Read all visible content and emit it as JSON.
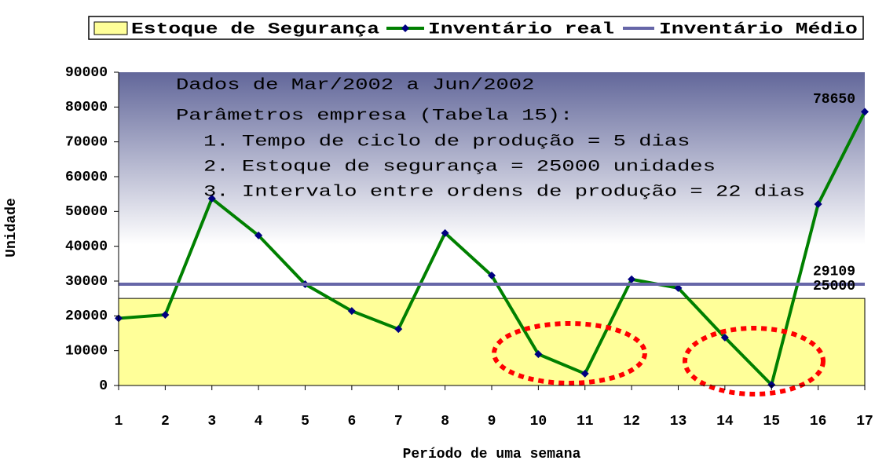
{
  "chart_data": {
    "type": "line",
    "annotations": [
      "Dados de Mar/2002 a Jun/2002",
      "Parâmetros empresa (Tabela 15):",
      "1. Tempo de ciclo de produção = 5 dias",
      "2. Estoque de segurança = 25000 unidades",
      "3. Intervalo entre ordens de produção = 22 dias"
    ],
    "xlabel": "Período de uma semana",
    "ylabel": "Unidade",
    "x": [
      1,
      2,
      3,
      4,
      5,
      6,
      7,
      8,
      9,
      10,
      11,
      12,
      13,
      14,
      15,
      16,
      17
    ],
    "xlim": [
      1,
      17
    ],
    "xticks": [
      1,
      2,
      3,
      4,
      5,
      6,
      7,
      8,
      9,
      10,
      11,
      12,
      13,
      14,
      15,
      16,
      17
    ],
    "ylim": [
      0,
      90000
    ],
    "yticks": [
      0,
      10000,
      20000,
      30000,
      40000,
      50000,
      60000,
      70000,
      80000,
      90000
    ],
    "legend": "top",
    "series": [
      {
        "name": "Estoque de Segurança",
        "kind": "area",
        "color": "#ffff99",
        "values": [
          25000,
          25000,
          25000,
          25000,
          25000,
          25000,
          25000,
          25000,
          25000,
          25000,
          25000,
          25000,
          25000,
          25000,
          25000,
          25000,
          25000
        ]
      },
      {
        "name": "Inventário real",
        "kind": "line",
        "color": "#008000",
        "marker_color": "#000080",
        "values": [
          19300,
          20300,
          53700,
          43100,
          29100,
          21400,
          16200,
          43800,
          31600,
          9000,
          3400,
          30500,
          28000,
          13800,
          200,
          52100,
          78650
        ]
      },
      {
        "name": "Inventário Médio",
        "kind": "line",
        "color": "#6666a8",
        "values": [
          29109,
          29109,
          29109,
          29109,
          29109,
          29109,
          29109,
          29109,
          29109,
          29109,
          29109,
          29109,
          29109,
          29109,
          29109,
          29109,
          29109
        ]
      }
    ]
  }
}
